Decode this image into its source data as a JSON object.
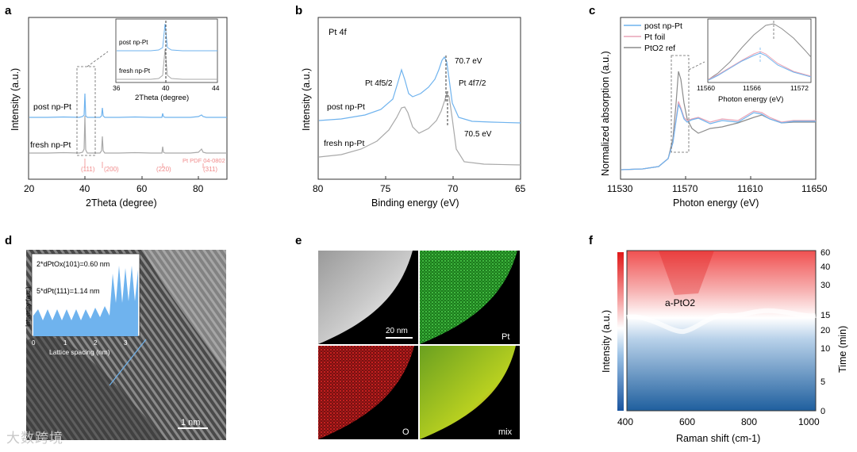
{
  "panels": {
    "a": {
      "letter": "a",
      "ylabel": "Intensity (a.u.)",
      "xlabel": "2Theta (degree)",
      "xticks": [
        "20",
        "40",
        "60",
        "80"
      ],
      "label_post": "post np-Pt",
      "label_fresh": "fresh np-Pt",
      "ref_label": "Pt PDF 04-0802",
      "peak_labels": [
        "(111)",
        "(200)",
        "(220)",
        "(311)"
      ],
      "inset_label_post": "post np-Pt",
      "inset_label_fresh": "fresh np-Pt",
      "inset_xlabel": "2Theta (degree)",
      "inset_xticks": [
        "36",
        "40",
        "44"
      ]
    },
    "b": {
      "letter": "b",
      "title": "Pt 4f",
      "ylabel": "Intensity (a.u.)",
      "xlabel": "Binding energy (eV)",
      "xticks": [
        "80",
        "75",
        "70",
        "65"
      ],
      "label_post": "post np-Pt",
      "label_fresh": "fresh np-Pt",
      "peak_52": "Pt 4f5/2",
      "peak_72": "Pt 4f7/2",
      "e_post": "70.7 eV",
      "e_fresh": "70.5 eV"
    },
    "c": {
      "letter": "c",
      "ylabel": "Normalized absorption (a.u.)",
      "xlabel": "Photon energy (eV)",
      "xticks": [
        "11530",
        "11570",
        "11610",
        "11650"
      ],
      "legend": [
        "post np-Pt",
        "Pt foil",
        "PtO2 ref"
      ],
      "inset_xlabel": "Photon energy (eV)",
      "inset_xticks": [
        "11560",
        "11566",
        "11572"
      ]
    },
    "d": {
      "letter": "d",
      "annot1": "2*dPtOx(101)=0.60 nm",
      "annot2": "5*dPt(111)=1.14 nm",
      "inset_ylabel": "Intensity (a.u.)",
      "inset_xlabel": "Lattice spacing (nm)",
      "inset_xticks": [
        "0",
        "1",
        "2",
        "3"
      ],
      "scalebar": "1 nm"
    },
    "e": {
      "letter": "e",
      "scalebar": "20 nm",
      "labels": [
        "Pt",
        "O",
        "mix"
      ]
    },
    "f": {
      "letter": "f",
      "ylabel_left": "Intensity (a.u.)",
      "ylabel_right": "Time (min)",
      "xlabel": "Raman shift (cm-1)",
      "xticks": [
        "400",
        "600",
        "800",
        "1000"
      ],
      "yticks": [
        "0",
        "5",
        "10",
        "15",
        "20",
        "30",
        "40",
        "60"
      ],
      "annot": "a-PtO2"
    }
  },
  "watermark": "大数跨境",
  "colors": {
    "post": "#6fb3ee",
    "fresh": "#a9a9a9",
    "foil": "#e8a3b5",
    "pto2": "#8c8c8c",
    "ref": "#f08a8a"
  },
  "chart_data": [
    {
      "type": "line",
      "title": "",
      "xlabel": "2Theta (degree)",
      "ylabel": "Intensity (a.u.)",
      "xlim": [
        20,
        90
      ],
      "series": [
        {
          "name": "post np-Pt",
          "peaks_2theta": [
            39.8,
            46.3,
            67.6,
            81.5
          ]
        },
        {
          "name": "fresh np-Pt",
          "peaks_2theta": [
            39.8,
            46.3,
            67.6,
            81.5
          ]
        }
      ],
      "reference": {
        "name": "Pt PDF 04-0802",
        "hkl": [
          "(111)",
          "(200)",
          "(220)",
          "(311)"
        ]
      }
    },
    {
      "type": "line",
      "title": "Pt 4f",
      "xlabel": "Binding energy (eV)",
      "ylabel": "Intensity (a.u.)",
      "xlim": [
        80,
        65
      ],
      "series": [
        {
          "name": "post np-Pt",
          "peaks_eV": [
            74.0,
            70.7
          ]
        },
        {
          "name": "fresh np-Pt",
          "peaks_eV": [
            73.8,
            70.5
          ]
        }
      ]
    },
    {
      "type": "line",
      "title": "",
      "xlabel": "Photon energy (eV)",
      "ylabel": "Normalized absorption (a.u.)",
      "xlim": [
        11530,
        11650
      ],
      "series": [
        {
          "name": "post np-Pt",
          "white_line_eV": 11567
        },
        {
          "name": "Pt foil",
          "white_line_eV": 11567
        },
        {
          "name": "PtO2 ref",
          "white_line_eV": 11568
        }
      ]
    },
    {
      "type": "heatmap",
      "title": "",
      "xlabel": "Raman shift (cm-1)",
      "ylabel": "Time (min)",
      "xlim": [
        380,
        1000
      ],
      "ylim": [
        0,
        60
      ],
      "annotation": "a-PtO2"
    }
  ]
}
